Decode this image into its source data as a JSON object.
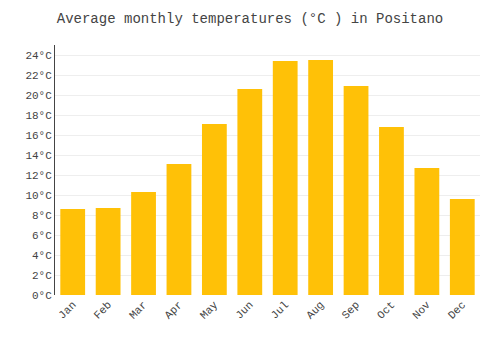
{
  "chart_data": {
    "type": "bar",
    "title": "Average monthly temperatures (°C ) in Positano",
    "categories": [
      "Jan",
      "Feb",
      "Mar",
      "Apr",
      "May",
      "Jun",
      "Jul",
      "Aug",
      "Sep",
      "Oct",
      "Nov",
      "Dec"
    ],
    "values": [
      8.6,
      8.7,
      10.3,
      13.1,
      17.1,
      20.6,
      23.4,
      23.5,
      20.9,
      16.8,
      12.7,
      9.6
    ],
    "color": "#FFC107",
    "ylim": [
      0,
      25
    ],
    "yticks": [
      {
        "value": 0,
        "label": "0°C"
      },
      {
        "value": 2,
        "label": "2°C"
      },
      {
        "value": 4,
        "label": "4°C"
      },
      {
        "value": 6,
        "label": "6°C"
      },
      {
        "value": 8,
        "label": "8°C"
      },
      {
        "value": 10,
        "label": "10°C"
      },
      {
        "value": 12,
        "label": "12°C"
      },
      {
        "value": 14,
        "label": "14°C"
      },
      {
        "value": 16,
        "label": "16°C"
      },
      {
        "value": 18,
        "label": "18°C"
      },
      {
        "value": 20,
        "label": "20°C"
      },
      {
        "value": 22,
        "label": "22°C"
      },
      {
        "value": 24,
        "label": "24°C"
      }
    ],
    "grid": true
  }
}
